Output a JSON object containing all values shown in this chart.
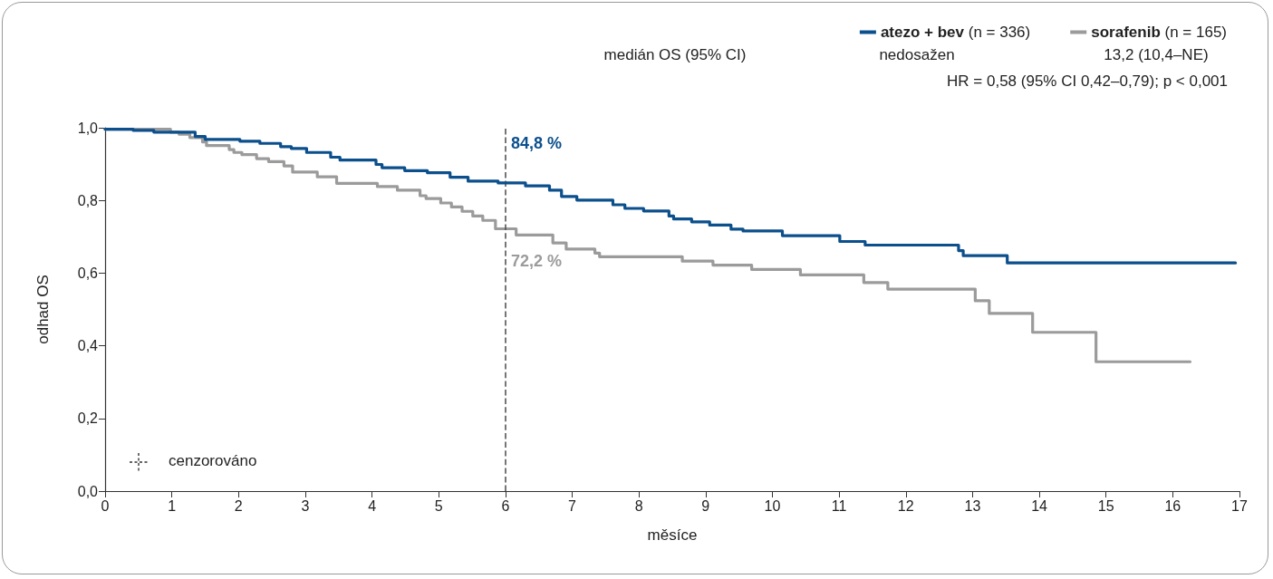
{
  "chart_data": {
    "type": "step",
    "xlabel": "měsíce",
    "ylabel": "odhad OS",
    "xlim": [
      0,
      17
    ],
    "xticks": [
      0,
      1,
      2,
      3,
      4,
      5,
      6,
      7,
      8,
      9,
      10,
      11,
      12,
      13,
      14,
      15,
      16,
      17
    ],
    "ylim": [
      0,
      1
    ],
    "yticks": [
      {
        "value": 0,
        "label": "0,0"
      },
      {
        "value": 0.2,
        "label": "0,2"
      },
      {
        "value": 0.4,
        "label": "0,4"
      },
      {
        "value": 0.6,
        "label": "0,6"
      },
      {
        "value": 0.8,
        "label": "0,8"
      },
      {
        "value": 1,
        "label": "1,0"
      }
    ],
    "grid": false,
    "legend": "top right",
    "marker": "none",
    "line_style": "solid",
    "series": [
      {
        "name": "atezo + bev (n = 336)",
        "color": "#0b4f8c",
        "x": [
          0,
          0.42,
          0.73,
          1.35,
          1.5,
          2.02,
          2.32,
          2.63,
          2.79,
          3.02,
          3.38,
          3.52,
          4.06,
          4.15,
          4.49,
          4.83,
          5.17,
          5.44,
          5.89,
          6.3,
          6.66,
          6.84,
          7.07,
          7.61,
          7.79,
          8.07,
          8.45,
          8.52,
          8.79,
          9.06,
          9.38,
          9.56,
          10.15,
          11.01,
          11.39,
          12.79,
          12.86,
          13.52,
          16.94
        ],
        "values": [
          0.996,
          0.993,
          0.988,
          0.976,
          0.968,
          0.963,
          0.957,
          0.948,
          0.943,
          0.932,
          0.919,
          0.911,
          0.899,
          0.89,
          0.882,
          0.876,
          0.864,
          0.853,
          0.848,
          0.84,
          0.828,
          0.811,
          0.801,
          0.788,
          0.778,
          0.771,
          0.757,
          0.749,
          0.741,
          0.732,
          0.721,
          0.716,
          0.703,
          0.687,
          0.677,
          0.662,
          0.648,
          0.628,
          0.628
        ]
      },
      {
        "name": "sorafenib (n = 165)",
        "color": "#9b9b9b",
        "x": [
          0,
          0.98,
          1.11,
          1.27,
          1.46,
          1.52,
          1.86,
          1.93,
          2.05,
          2.27,
          2.45,
          2.68,
          2.81,
          3.18,
          3.47,
          4.08,
          4.38,
          4.72,
          4.81,
          5.03,
          5.19,
          5.35,
          5.51,
          5.66,
          5.85,
          6.16,
          6.71,
          6.91,
          7.34,
          7.41,
          8.65,
          9.11,
          9.69,
          10.42,
          11.37,
          11.73,
          13.04,
          13.25,
          13.9,
          14.85,
          16.26
        ],
        "values": [
          0.996,
          0.988,
          0.982,
          0.973,
          0.961,
          0.951,
          0.94,
          0.932,
          0.926,
          0.915,
          0.907,
          0.895,
          0.878,
          0.865,
          0.847,
          0.838,
          0.828,
          0.813,
          0.805,
          0.793,
          0.782,
          0.77,
          0.757,
          0.745,
          0.722,
          0.705,
          0.683,
          0.666,
          0.655,
          0.645,
          0.633,
          0.622,
          0.61,
          0.595,
          0.574,
          0.556,
          0.524,
          0.489,
          0.437,
          0.356,
          0.356
        ]
      }
    ],
    "ref_lines": [
      {
        "axis": "x",
        "value": 6,
        "color": "#555555",
        "line_style": "dashed"
      }
    ],
    "annotations": [
      {
        "text": "84,8 %",
        "x": 6,
        "y": 0.848
      },
      {
        "text": "72,2 %",
        "x": 6,
        "y": 0.722
      },
      "medián OS (95% CI)",
      "nedosažen",
      "13,2 (10,4–NE)",
      "HR = 0,58 (95% CI 0,42–0,79); p < 0,001",
      "cenzorováno"
    ]
  }
}
